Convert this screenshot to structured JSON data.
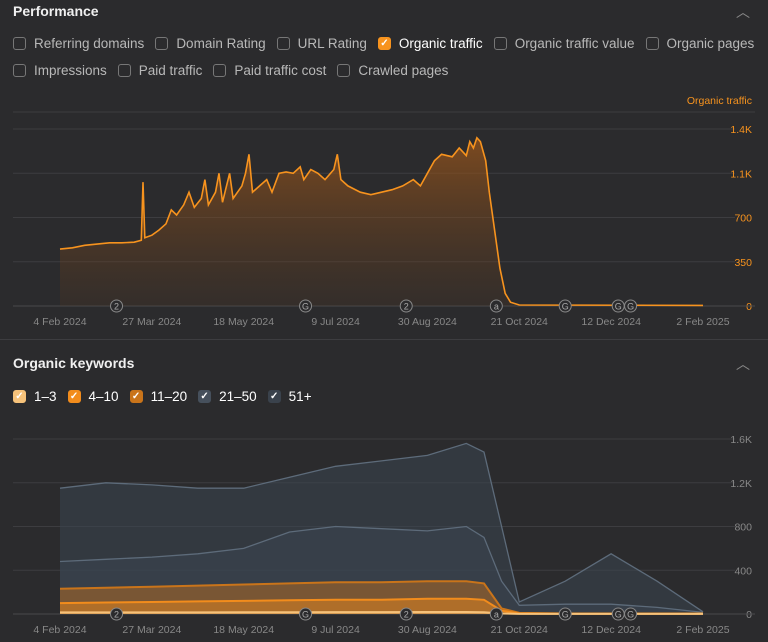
{
  "performance": {
    "title": "Performance",
    "metrics": [
      {
        "label": "Referring domains",
        "checked": false
      },
      {
        "label": "Domain Rating",
        "checked": false
      },
      {
        "label": "URL Rating",
        "checked": false
      },
      {
        "label": "Organic traffic",
        "checked": true
      },
      {
        "label": "Organic traffic value",
        "checked": false
      },
      {
        "label": "Organic pages",
        "checked": false
      },
      {
        "label": "Impressions",
        "checked": false
      },
      {
        "label": "Paid traffic",
        "checked": false
      },
      {
        "label": "Paid traffic cost",
        "checked": false
      },
      {
        "label": "Crawled pages",
        "checked": false
      }
    ],
    "legend": "Organic traffic"
  },
  "keywords": {
    "title": "Organic keywords",
    "filters": [
      {
        "label": "1–3",
        "color": "#f6c27a"
      },
      {
        "label": "4–10",
        "color": "#f28c1c"
      },
      {
        "label": "11–20",
        "color": "#c9741a"
      },
      {
        "label": "21–50",
        "color": "#46505c"
      },
      {
        "label": "51+",
        "color": "#3a424c"
      }
    ]
  },
  "colors": {
    "accent": "#f7931e"
  },
  "chart_data": [
    {
      "type": "area",
      "title": "Organic traffic",
      "x_unit": "days since 4 Feb 2024",
      "xticks": [
        {
          "day": 0,
          "label": "4 Feb 2024"
        },
        {
          "day": 52,
          "label": "27 Mar 2024"
        },
        {
          "day": 104,
          "label": "18 May 2024"
        },
        {
          "day": 156,
          "label": "9 Jul 2024"
        },
        {
          "day": 208,
          "label": "30 Aug 2024"
        },
        {
          "day": 260,
          "label": "21 Oct 2024"
        },
        {
          "day": 312,
          "label": "12 Dec 2024"
        },
        {
          "day": 364,
          "label": "2 Feb 2025"
        }
      ],
      "yticks": [
        {
          "v": 0,
          "label": "0"
        },
        {
          "v": 350,
          "label": "350"
        },
        {
          "v": 700,
          "label": "700"
        },
        {
          "v": 1050,
          "label": "1.1K"
        },
        {
          "v": 1400,
          "label": "1.4K"
        }
      ],
      "ylim": [
        0,
        1400
      ],
      "annotations": [
        {
          "day": 32,
          "label": "2"
        },
        {
          "day": 139,
          "label": "G"
        },
        {
          "day": 196,
          "label": "2"
        },
        {
          "day": 247,
          "label": "a"
        },
        {
          "day": 286,
          "label": "G"
        },
        {
          "day": 316,
          "label": "G"
        },
        {
          "day": 323,
          "label": "G"
        }
      ],
      "points": [
        [
          0,
          450
        ],
        [
          7,
          460
        ],
        [
          14,
          480
        ],
        [
          21,
          490
        ],
        [
          28,
          500
        ],
        [
          35,
          500
        ],
        [
          42,
          505
        ],
        [
          46,
          520
        ],
        [
          47,
          980
        ],
        [
          48,
          540
        ],
        [
          52,
          560
        ],
        [
          56,
          600
        ],
        [
          60,
          650
        ],
        [
          63,
          760
        ],
        [
          66,
          720
        ],
        [
          70,
          800
        ],
        [
          73,
          900
        ],
        [
          76,
          780
        ],
        [
          80,
          850
        ],
        [
          82,
          1000
        ],
        [
          84,
          800
        ],
        [
          88,
          900
        ],
        [
          90,
          1050
        ],
        [
          92,
          820
        ],
        [
          96,
          1050
        ],
        [
          98,
          850
        ],
        [
          103,
          950
        ],
        [
          105,
          1050
        ],
        [
          107,
          1200
        ],
        [
          109,
          900
        ],
        [
          113,
          950
        ],
        [
          117,
          1000
        ],
        [
          120,
          900
        ],
        [
          124,
          1050
        ],
        [
          128,
          1060
        ],
        [
          132,
          1050
        ],
        [
          136,
          1100
        ],
        [
          138,
          1000
        ],
        [
          142,
          1080
        ],
        [
          146,
          1050
        ],
        [
          150,
          1000
        ],
        [
          155,
          1080
        ],
        [
          157,
          1200
        ],
        [
          159,
          1000
        ],
        [
          163,
          950
        ],
        [
          170,
          900
        ],
        [
          176,
          880
        ],
        [
          182,
          900
        ],
        [
          188,
          920
        ],
        [
          194,
          950
        ],
        [
          200,
          1000
        ],
        [
          204,
          950
        ],
        [
          208,
          1050
        ],
        [
          212,
          1150
        ],
        [
          216,
          1200
        ],
        [
          222,
          1180
        ],
        [
          226,
          1250
        ],
        [
          230,
          1190
        ],
        [
          232,
          1300
        ],
        [
          234,
          1250
        ],
        [
          236,
          1330
        ],
        [
          238,
          1300
        ],
        [
          241,
          1150
        ],
        [
          243,
          900
        ],
        [
          246,
          600
        ],
        [
          249,
          300
        ],
        [
          252,
          100
        ],
        [
          255,
          30
        ],
        [
          260,
          8
        ],
        [
          364,
          5
        ]
      ]
    },
    {
      "type": "area",
      "title": "Organic keywords",
      "xticks": [
        {
          "day": 0,
          "label": "4 Feb 2024"
        },
        {
          "day": 52,
          "label": "27 Mar 2024"
        },
        {
          "day": 104,
          "label": "18 May 2024"
        },
        {
          "day": 156,
          "label": "9 Jul 2024"
        },
        {
          "day": 208,
          "label": "30 Aug 2024"
        },
        {
          "day": 260,
          "label": "21 Oct 2024"
        },
        {
          "day": 312,
          "label": "12 Dec 2024"
        },
        {
          "day": 364,
          "label": "2 Feb 2025"
        }
      ],
      "yticks": [
        {
          "v": 0,
          "label": "0"
        },
        {
          "v": 400,
          "label": "400"
        },
        {
          "v": 800,
          "label": "800"
        },
        {
          "v": 1200,
          "label": "1.2K"
        },
        {
          "v": 1600,
          "label": "1.6K"
        }
      ],
      "ylim": [
        0,
        1600
      ],
      "annotations": [
        {
          "day": 32,
          "label": "2"
        },
        {
          "day": 139,
          "label": "G"
        },
        {
          "day": 196,
          "label": "2"
        },
        {
          "day": 247,
          "label": "a"
        },
        {
          "day": 286,
          "label": "G"
        },
        {
          "day": 316,
          "label": "G"
        },
        {
          "day": 323,
          "label": "G"
        }
      ],
      "x": [
        0,
        26,
        52,
        78,
        104,
        130,
        156,
        182,
        208,
        230,
        240,
        250,
        260,
        286,
        312,
        338,
        364
      ],
      "series": [
        {
          "name": "51+",
          "color": "#3a424c",
          "values": [
            1150,
            1200,
            1180,
            1150,
            1150,
            1250,
            1350,
            1400,
            1450,
            1560,
            1480,
            800,
            110,
            300,
            550,
            300,
            20
          ]
        },
        {
          "name": "21–50",
          "color": "#4a5561",
          "values": [
            480,
            500,
            520,
            550,
            600,
            750,
            800,
            780,
            760,
            800,
            700,
            300,
            80,
            90,
            90,
            60,
            15
          ]
        },
        {
          "name": "11–20",
          "color": "#c9741a",
          "values": [
            230,
            240,
            250,
            260,
            270,
            280,
            290,
            290,
            300,
            300,
            280,
            50,
            10,
            5,
            5,
            5,
            5
          ]
        },
        {
          "name": "4–10",
          "color": "#f28c1c",
          "values": [
            100,
            105,
            110,
            115,
            120,
            125,
            130,
            130,
            140,
            140,
            130,
            30,
            5,
            3,
            3,
            3,
            3
          ]
        },
        {
          "name": "1–3",
          "color": "#f6c27a",
          "values": [
            15,
            15,
            15,
            15,
            16,
            16,
            17,
            17,
            18,
            18,
            16,
            5,
            1,
            1,
            1,
            1,
            1
          ]
        }
      ]
    }
  ]
}
